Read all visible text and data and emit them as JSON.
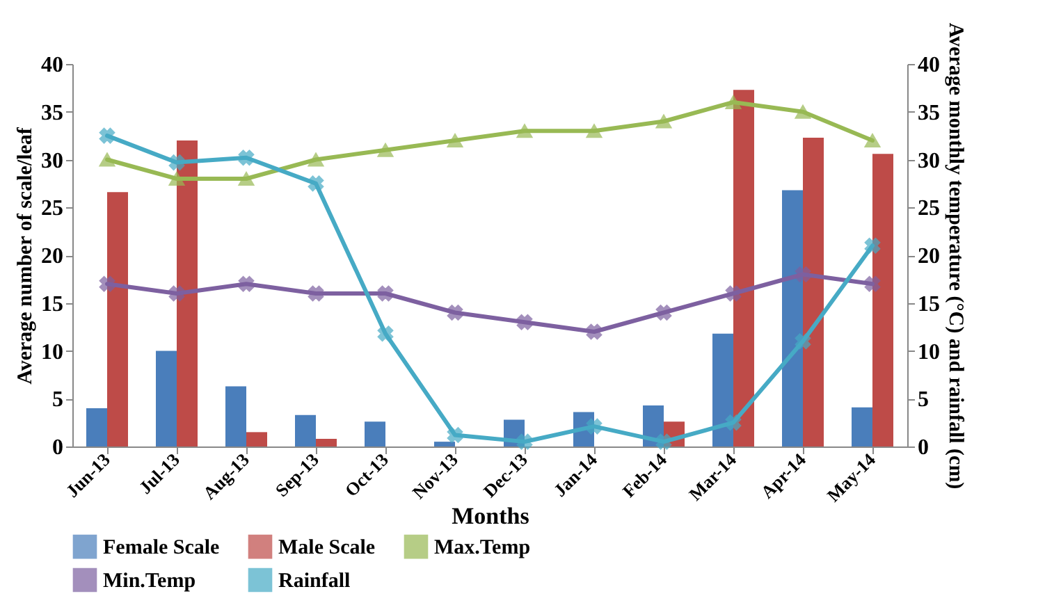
{
  "chart_data": {
    "type": "bar",
    "xlabel": "Months",
    "ylabel": "Average number of scale/leaf",
    "y2label": "Average monthly temperature (°C) and rainfall (cm)",
    "categories": [
      "Jun-13",
      "Jul-13",
      "Aug-13",
      "Sep-13",
      "Oct-13",
      "Nov-13",
      "Dec-13",
      "Jan-14",
      "Feb-14",
      "Mar-14",
      "Apr-14",
      "May-14"
    ],
    "series": [
      {
        "name": "Female Scale",
        "color": "#4a7ebb",
        "values": [
          4,
          10,
          6.3,
          3.3,
          2.6,
          0.5,
          2.8,
          3.6,
          4.3,
          11.8,
          26.8,
          4.1
        ]
      },
      {
        "name": "Male Scale",
        "color": "#be4b48",
        "values": [
          26.6,
          32,
          1.5,
          0.8,
          0,
          0,
          0,
          0,
          2.6,
          37.3,
          32.3,
          30.6
        ]
      },
      {
        "name": "Max.Temp",
        "type": "line",
        "axis": "y2",
        "marker": "triangle",
        "color": "#98b954",
        "values": [
          30,
          28,
          28,
          30,
          31,
          32,
          33,
          33,
          34,
          36,
          35,
          32
        ]
      },
      {
        "name": "Min.Temp",
        "type": "line",
        "axis": "y2",
        "marker": "cross",
        "color": "#7d60a0",
        "values": [
          17,
          16,
          17,
          16,
          16,
          14,
          13,
          12,
          14,
          16,
          18,
          17
        ]
      },
      {
        "name": "Rainfall",
        "type": "line",
        "axis": "y2",
        "marker": "cross",
        "color": "#46aac5",
        "values": [
          32.5,
          29.7,
          30.2,
          27.5,
          11.8,
          1.2,
          0.5,
          2.1,
          0.5,
          2.5,
          11,
          21
        ]
      }
    ],
    "ylim": [
      0,
      40
    ],
    "yticks": [
      0,
      5,
      10,
      15,
      20,
      25,
      30,
      35,
      40
    ],
    "y2lim": [
      0,
      40
    ],
    "y2ticks": [
      0,
      5,
      10,
      15,
      20,
      25,
      30,
      35,
      40
    ],
    "legend": "bottom",
    "grid": false
  }
}
